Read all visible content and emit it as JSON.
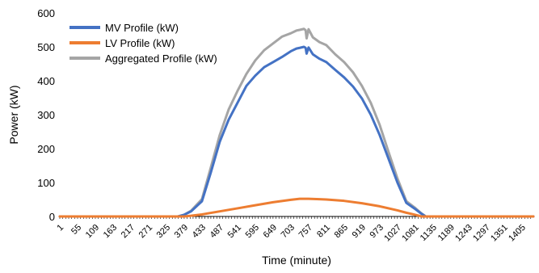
{
  "chart_data": {
    "type": "line",
    "title": "",
    "xlabel": "Time (minute)",
    "ylabel": "Power (kW)",
    "xlim": [
      1,
      1440
    ],
    "ylim": [
      0,
      600
    ],
    "y_ticks": [
      0,
      100,
      200,
      300,
      400,
      500,
      600
    ],
    "x_tick_labels": [
      "1",
      "55",
      "109",
      "163",
      "217",
      "271",
      "325",
      "379",
      "433",
      "487",
      "541",
      "595",
      "649",
      "703",
      "757",
      "811",
      "865",
      "919",
      "973",
      "1027",
      "1081",
      "1135",
      "1189",
      "1243",
      "1297",
      "1351",
      "1405"
    ],
    "grid": false,
    "legend_position": "top-left",
    "series": [
      {
        "name": "MV Profile (kW)",
        "color": "#4472C4",
        "x": [
          1,
          360,
          379,
          400,
          433,
          460,
          487,
          514,
          541,
          568,
          595,
          622,
          649,
          676,
          703,
          720,
          730,
          743,
          748,
          751,
          757,
          770,
          790,
          811,
          838,
          865,
          892,
          919,
          946,
          973,
          1000,
          1027,
          1054,
          1081,
          1100,
          1113,
          1440
        ],
        "y": [
          0,
          0,
          5,
          15,
          45,
          130,
          220,
          285,
          335,
          385,
          415,
          440,
          455,
          470,
          487,
          495,
          497,
          500,
          497,
          480,
          498,
          478,
          465,
          455,
          432,
          410,
          383,
          348,
          300,
          240,
          170,
          100,
          40,
          22,
          8,
          0,
          0
        ]
      },
      {
        "name": "LV Profile (kW)",
        "color": "#ED7D31",
        "x": [
          1,
          379,
          400,
          433,
          487,
          541,
          595,
          649,
          703,
          730,
          757,
          790,
          811,
          865,
          919,
          973,
          1027,
          1054,
          1081,
          1100,
          1440
        ],
        "y": [
          0,
          0,
          2,
          6,
          15,
          24,
          33,
          42,
          49,
          52,
          52,
          51,
          50,
          46,
          39,
          30,
          18,
          11,
          5,
          0,
          0
        ]
      },
      {
        "name": "Aggregated Profile (kW)",
        "color": "#A5A5A5",
        "x": [
          1,
          360,
          379,
          400,
          433,
          460,
          487,
          514,
          541,
          568,
          595,
          622,
          649,
          676,
          703,
          720,
          730,
          743,
          748,
          751,
          757,
          770,
          790,
          811,
          838,
          865,
          892,
          919,
          946,
          973,
          1000,
          1027,
          1054,
          1081,
          1100,
          1113,
          1440
        ],
        "y": [
          0,
          0,
          5,
          17,
          51,
          145,
          240,
          315,
          370,
          420,
          460,
          490,
          510,
          530,
          540,
          548,
          550,
          553,
          549,
          525,
          552,
          528,
          514,
          505,
          478,
          455,
          425,
          385,
          335,
          270,
          190,
          112,
          45,
          25,
          9,
          0,
          0
        ]
      }
    ]
  }
}
